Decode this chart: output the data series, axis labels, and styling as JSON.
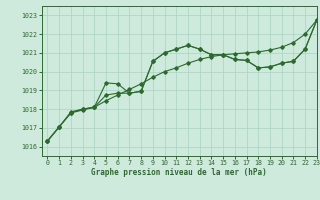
{
  "title": "Graphe pression niveau de la mer (hPa)",
  "xlim": [
    -0.5,
    23
  ],
  "ylim": [
    1015.5,
    1023.5
  ],
  "yticks": [
    1016,
    1017,
    1018,
    1019,
    1020,
    1021,
    1022,
    1023
  ],
  "xticks": [
    0,
    1,
    2,
    3,
    4,
    5,
    6,
    7,
    8,
    9,
    10,
    11,
    12,
    13,
    14,
    15,
    16,
    17,
    18,
    19,
    20,
    21,
    22,
    23
  ],
  "background_color": "#ceeadd",
  "grid_color": "#a8d4c0",
  "line_color": "#2d6a2d",
  "line1_y": [
    1016.3,
    1017.05,
    1017.8,
    1017.95,
    1018.1,
    1018.45,
    1018.75,
    1019.05,
    1019.35,
    1019.7,
    1020.0,
    1020.2,
    1020.45,
    1020.65,
    1020.8,
    1020.9,
    1020.95,
    1021.0,
    1021.05,
    1021.15,
    1021.3,
    1021.55,
    1022.0,
    1022.75
  ],
  "line2_y": [
    1016.3,
    1017.05,
    1017.8,
    1018.0,
    1018.1,
    1018.75,
    1018.85,
    1018.85,
    1018.95,
    1020.55,
    1021.0,
    1021.2,
    1021.4,
    1021.2,
    1020.9,
    1020.9,
    1020.65,
    1020.6,
    1020.2,
    1020.25,
    1020.45,
    1020.55,
    1021.2,
    1022.75
  ],
  "line3_y": [
    1016.3,
    1017.05,
    1017.85,
    1018.0,
    1018.1,
    1019.4,
    1019.35,
    1018.85,
    1018.95,
    1020.55,
    1021.0,
    1021.2,
    1021.4,
    1021.2,
    1020.9,
    1020.9,
    1020.65,
    1020.6,
    1020.2,
    1020.25,
    1020.45,
    1020.55,
    1021.2,
    1022.75
  ],
  "title_fontsize": 5.5,
  "tick_fontsize": 4.8
}
